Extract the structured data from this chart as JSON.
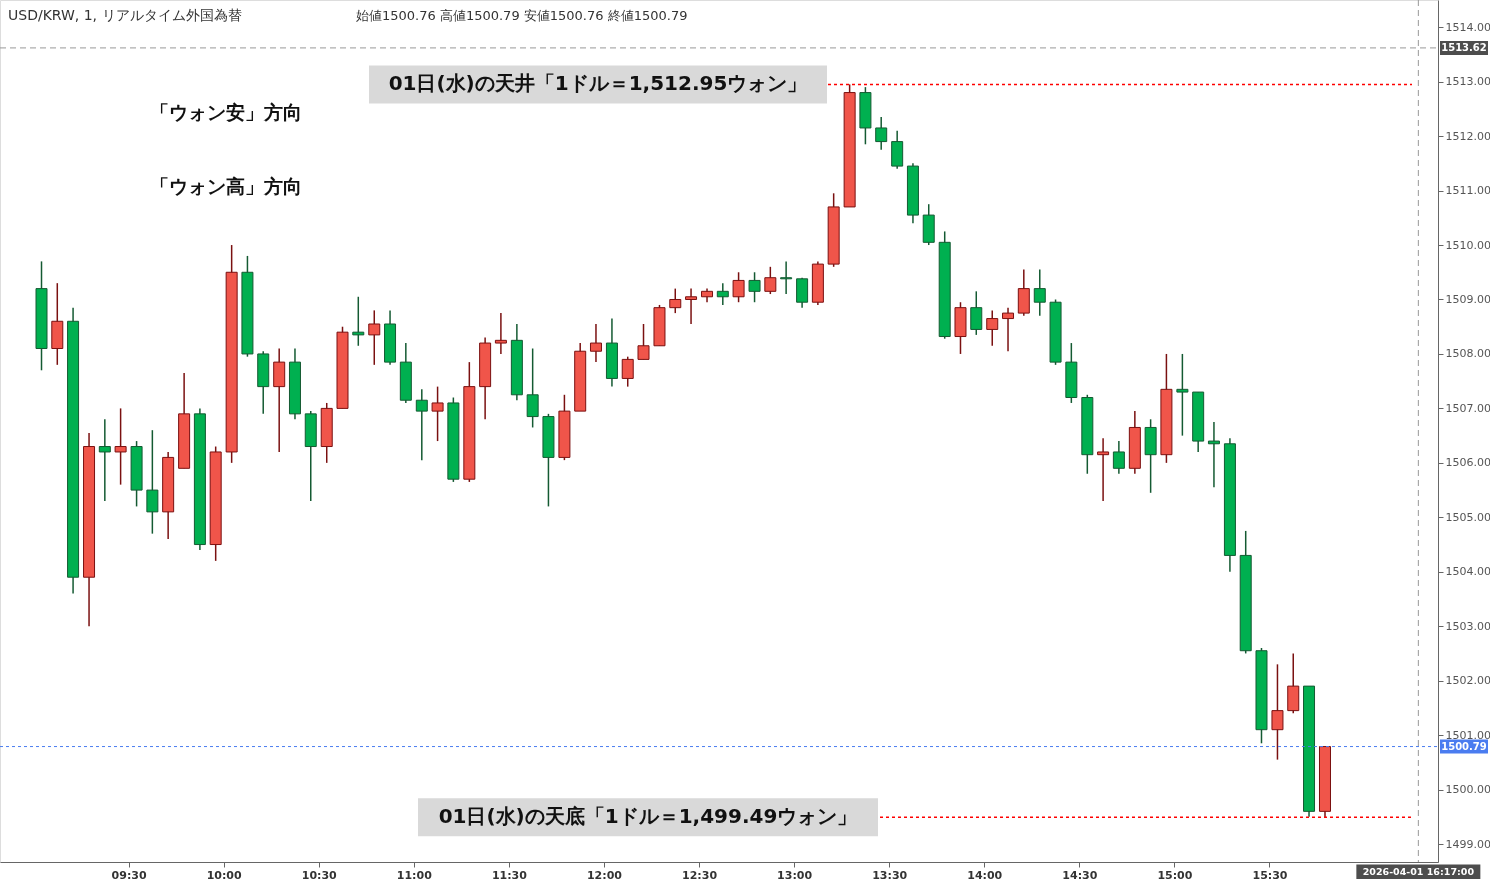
{
  "chart_data": {
    "type": "candlestick",
    "title": "USD/KRW, 1, リアルタイム外国為替",
    "annotations": [
      "始値1500.76 高値1500.79 安値1500.76 終値1500.79",
      "「ウォン安」方向",
      "「ウォン高」方向"
    ],
    "x": [
      9.042,
      9.125,
      9.208,
      9.292,
      9.375,
      9.458,
      9.542,
      9.625,
      9.708,
      9.792,
      9.875,
      9.958,
      10.042,
      10.125,
      10.208,
      10.292,
      10.375,
      10.458,
      10.542,
      10.625,
      10.708,
      10.792,
      10.875,
      10.958,
      11.042,
      11.125,
      11.208,
      11.292,
      11.375,
      11.458,
      11.542,
      11.625,
      11.708,
      11.792,
      11.875,
      11.958,
      12.042,
      12.125,
      12.208,
      12.292,
      12.375,
      12.458,
      12.542,
      12.625,
      12.708,
      12.792,
      12.875,
      12.958,
      13.042,
      13.125,
      13.208,
      13.292,
      13.375,
      13.458,
      13.542,
      13.625,
      13.708,
      13.792,
      13.875,
      13.958,
      14.042,
      14.125,
      14.208,
      14.292,
      14.375,
      14.458,
      14.542,
      14.625,
      14.708,
      14.792,
      14.875,
      14.958,
      15.042,
      15.125,
      15.208,
      15.292,
      15.375,
      15.458,
      15.542,
      15.625,
      15.708,
      15.792
    ],
    "ohlc": [
      [
        1509.2,
        1509.7,
        1507.7,
        1508.1
      ],
      [
        1508.1,
        1509.3,
        1507.8,
        1508.6
      ],
      [
        1508.6,
        1508.85,
        1503.6,
        1503.9
      ],
      [
        1503.9,
        1506.55,
        1503.0,
        1506.3
      ],
      [
        1506.3,
        1506.8,
        1505.3,
        1506.2
      ],
      [
        1506.2,
        1507.0,
        1505.6,
        1506.3
      ],
      [
        1506.3,
        1506.4,
        1505.2,
        1505.5
      ],
      [
        1505.5,
        1506.6,
        1504.7,
        1505.1
      ],
      [
        1505.1,
        1506.2,
        1504.6,
        1506.1
      ],
      [
        1505.9,
        1507.65,
        1505.9,
        1506.9
      ],
      [
        1506.9,
        1507.0,
        1504.4,
        1504.5
      ],
      [
        1504.5,
        1506.3,
        1504.2,
        1506.2
      ],
      [
        1506.2,
        1510.0,
        1506.0,
        1509.5
      ],
      [
        1509.5,
        1509.8,
        1507.95,
        1508.0
      ],
      [
        1508.0,
        1508.05,
        1506.9,
        1507.4
      ],
      [
        1507.4,
        1508.1,
        1506.2,
        1507.85
      ],
      [
        1507.85,
        1508.1,
        1506.8,
        1506.9
      ],
      [
        1506.9,
        1506.95,
        1505.3,
        1506.3
      ],
      [
        1506.3,
        1507.1,
        1506.0,
        1507.0
      ],
      [
        1507.0,
        1508.5,
        1507.0,
        1508.4
      ],
      [
        1508.4,
        1509.05,
        1508.15,
        1508.35
      ],
      [
        1508.35,
        1508.8,
        1507.8,
        1508.55
      ],
      [
        1508.55,
        1508.8,
        1507.8,
        1507.85
      ],
      [
        1507.85,
        1508.2,
        1507.1,
        1507.15
      ],
      [
        1507.15,
        1507.35,
        1506.05,
        1506.95
      ],
      [
        1506.95,
        1507.4,
        1506.4,
        1507.1
      ],
      [
        1507.1,
        1507.2,
        1505.65,
        1505.7
      ],
      [
        1505.7,
        1507.85,
        1505.65,
        1507.4
      ],
      [
        1507.4,
        1508.3,
        1506.8,
        1508.2
      ],
      [
        1508.2,
        1508.75,
        1508.0,
        1508.25
      ],
      [
        1508.25,
        1508.55,
        1507.15,
        1507.25
      ],
      [
        1507.25,
        1508.1,
        1506.65,
        1506.85
      ],
      [
        1506.85,
        1506.9,
        1505.2,
        1506.1
      ],
      [
        1506.1,
        1507.25,
        1506.05,
        1506.95
      ],
      [
        1506.95,
        1508.2,
        1506.95,
        1508.05
      ],
      [
        1508.05,
        1508.55,
        1507.85,
        1508.2
      ],
      [
        1508.2,
        1508.65,
        1507.4,
        1507.55
      ],
      [
        1507.55,
        1507.95,
        1507.4,
        1507.9
      ],
      [
        1507.9,
        1508.55,
        1507.9,
        1508.15
      ],
      [
        1508.15,
        1508.9,
        1508.15,
        1508.85
      ],
      [
        1508.85,
        1509.2,
        1508.75,
        1509.0
      ],
      [
        1509.0,
        1509.2,
        1508.55,
        1509.05
      ],
      [
        1509.05,
        1509.2,
        1508.95,
        1509.15
      ],
      [
        1509.15,
        1509.3,
        1508.9,
        1509.05
      ],
      [
        1509.05,
        1509.5,
        1508.95,
        1509.35
      ],
      [
        1509.35,
        1509.5,
        1508.95,
        1509.15
      ],
      [
        1509.15,
        1509.6,
        1509.1,
        1509.4
      ],
      [
        1509.4,
        1509.7,
        1509.1,
        1509.38
      ],
      [
        1509.38,
        1509.4,
        1508.85,
        1508.95
      ],
      [
        1508.95,
        1509.7,
        1508.9,
        1509.65
      ],
      [
        1509.65,
        1510.95,
        1509.6,
        1510.7
      ],
      [
        1510.7,
        1512.95,
        1510.7,
        1512.8
      ],
      [
        1512.8,
        1512.9,
        1511.85,
        1512.15
      ],
      [
        1512.15,
        1512.35,
        1511.75,
        1511.9
      ],
      [
        1511.9,
        1512.1,
        1511.4,
        1511.45
      ],
      [
        1511.45,
        1511.5,
        1510.4,
        1510.55
      ],
      [
        1510.55,
        1510.75,
        1510.0,
        1510.05
      ],
      [
        1510.05,
        1510.25,
        1508.28,
        1508.32
      ],
      [
        1508.32,
        1508.95,
        1508.0,
        1508.85
      ],
      [
        1508.85,
        1509.15,
        1508.35,
        1508.45
      ],
      [
        1508.45,
        1508.8,
        1508.15,
        1508.65
      ],
      [
        1508.65,
        1508.85,
        1508.05,
        1508.75
      ],
      [
        1508.75,
        1509.55,
        1508.7,
        1509.2
      ],
      [
        1509.2,
        1509.55,
        1508.7,
        1508.95
      ],
      [
        1508.95,
        1509.0,
        1507.8,
        1507.85
      ],
      [
        1507.85,
        1508.2,
        1507.1,
        1507.2
      ],
      [
        1507.2,
        1507.25,
        1505.8,
        1506.15
      ],
      [
        1506.15,
        1506.45,
        1505.3,
        1506.2
      ],
      [
        1506.2,
        1506.4,
        1505.8,
        1505.9
      ],
      [
        1505.9,
        1506.95,
        1505.8,
        1506.65
      ],
      [
        1506.65,
        1506.8,
        1505.45,
        1506.15
      ],
      [
        1506.15,
        1508.0,
        1506.0,
        1507.35
      ],
      [
        1507.35,
        1508.0,
        1506.5,
        1507.3
      ],
      [
        1507.3,
        1507.3,
        1506.2,
        1506.4
      ],
      [
        1506.4,
        1506.75,
        1505.55,
        1506.35
      ],
      [
        1506.35,
        1506.45,
        1504.0,
        1504.3
      ],
      [
        1504.3,
        1504.75,
        1502.5,
        1502.55
      ],
      [
        1502.55,
        1502.6,
        1500.85,
        1501.1
      ],
      [
        1501.1,
        1502.3,
        1500.55,
        1501.45
      ],
      [
        1501.45,
        1502.5,
        1501.4,
        1501.9
      ],
      [
        1501.9,
        1501.9,
        1499.5,
        1499.6
      ],
      [
        1499.6,
        1500.8,
        1499.49,
        1500.79
      ]
    ],
    "xlim": [
      8.85,
      16.36
    ],
    "xticks": [
      {
        "value": 9.5,
        "label": "09:30"
      },
      {
        "value": 10,
        "label": "10:00"
      },
      {
        "value": 10.5,
        "label": "10:30"
      },
      {
        "value": 11,
        "label": "11:00"
      },
      {
        "value": 11.5,
        "label": "11:30"
      },
      {
        "value": 12,
        "label": "12:00"
      },
      {
        "value": 12.5,
        "label": "12:30"
      },
      {
        "value": 13,
        "label": "13:00"
      },
      {
        "value": 13.5,
        "label": "13:30"
      },
      {
        "value": 14,
        "label": "14:00"
      },
      {
        "value": 14.5,
        "label": "14:30"
      },
      {
        "value": 15,
        "label": "15:00"
      },
      {
        "value": 15.5,
        "label": "15:30"
      }
    ],
    "ylim": [
      1498.67,
      1514.5
    ],
    "yticks": [
      {
        "value": 1499,
        "label": "1499.00"
      },
      {
        "value": 1500,
        "label": "1500.00"
      },
      {
        "value": 1501,
        "label": "1501.00"
      },
      {
        "value": 1502,
        "label": "1502.00"
      },
      {
        "value": 1503,
        "label": "1503.00"
      },
      {
        "value": 1504,
        "label": "1504.00"
      },
      {
        "value": 1505,
        "label": "1505.00"
      },
      {
        "value": 1506,
        "label": "1506.00"
      },
      {
        "value": 1507,
        "label": "1507.00"
      },
      {
        "value": 1508,
        "label": "1508.00"
      },
      {
        "value": 1509,
        "label": "1509.00"
      },
      {
        "value": 1510,
        "label": "1510.00"
      },
      {
        "value": 1511,
        "label": "1511.00"
      },
      {
        "value": 1512,
        "label": "1512.00"
      },
      {
        "value": 1513,
        "label": "1513.00"
      },
      {
        "value": 1514,
        "label": "1514.00"
      }
    ],
    "ref_lines": [
      {
        "axis": "y",
        "value": 1513.62,
        "label": "1513.62",
        "color": "#999999",
        "line_style": "dashed"
      },
      {
        "axis": "y",
        "value": 1512.95,
        "label": "01日(水)の天井「1ドル＝1,512.95ウォン」",
        "color": "#ff0000",
        "line_style": "dotted"
      },
      {
        "axis": "y",
        "value": 1500.79,
        "label": "1500.79",
        "color": "#4a7cf0",
        "line_style": "dotted"
      },
      {
        "axis": "y",
        "value": 1499.49,
        "label": "01日(水)の天底「1ドル＝1,499.49ウォン」",
        "color": "#ff0000",
        "line_style": "dotted"
      },
      {
        "axis": "x",
        "value": 16.283,
        "label": "2026-04-01 16:17:00",
        "color": "#999999",
        "line_style": "dashed"
      }
    ],
    "grid": false
  }
}
